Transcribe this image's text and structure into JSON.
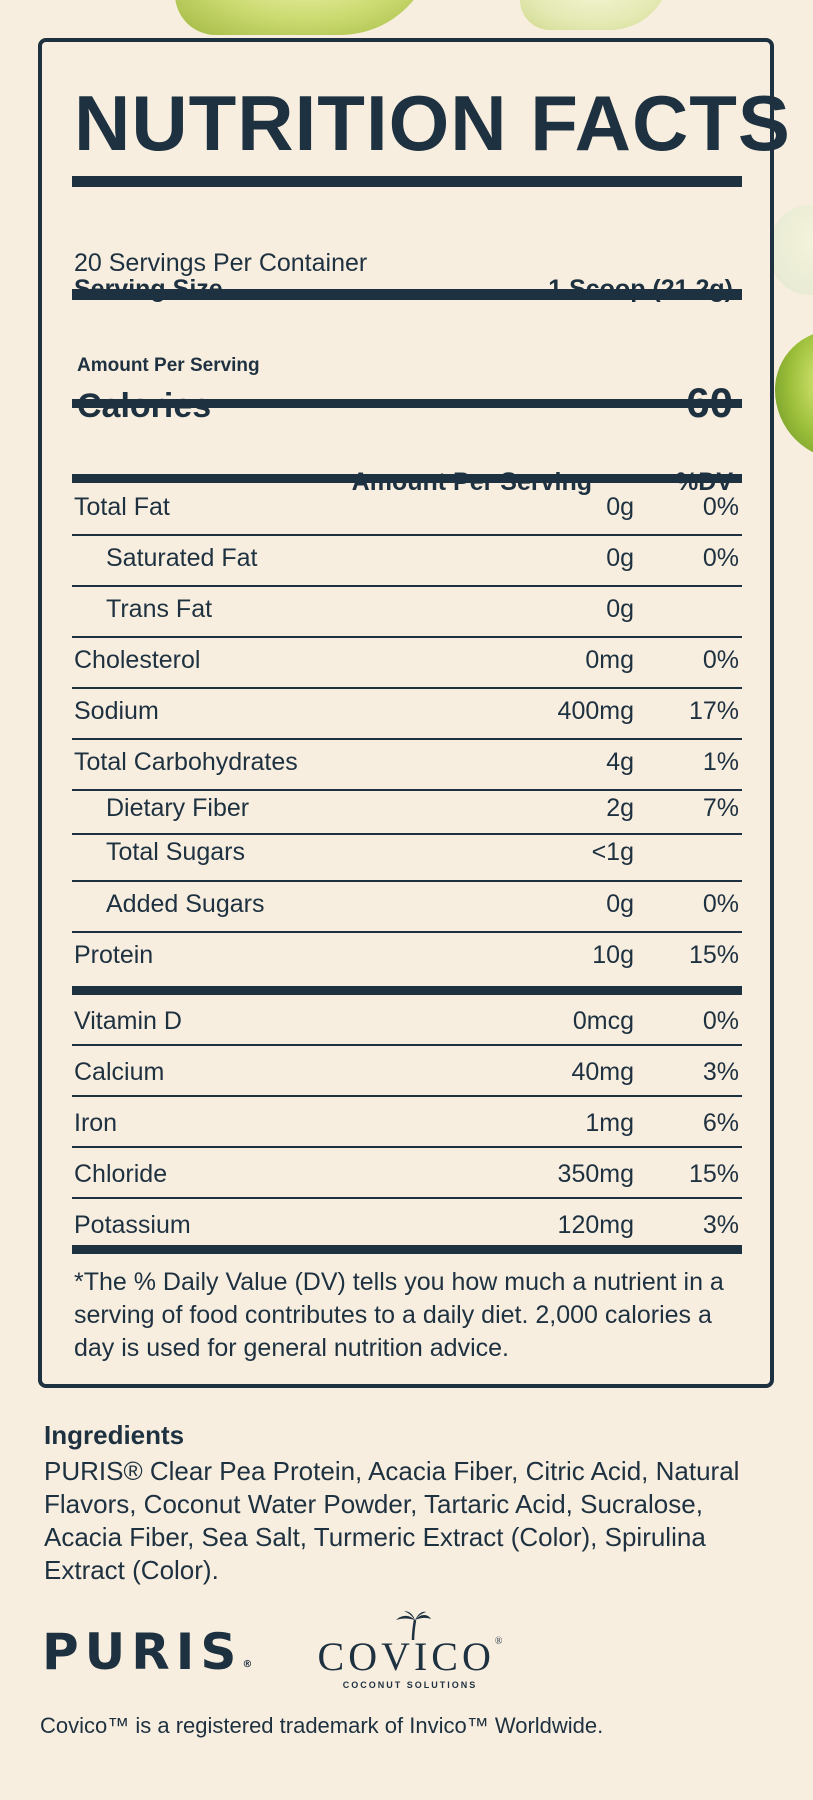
{
  "label": {
    "title": "NUTRITION FACTS",
    "servings_per_container": "20 Servings Per Container",
    "serving_size_label": "Serving Size",
    "serving_size_value": "1 Scoop (21.2g)",
    "amount_per_serving_small": "Amount Per Serving",
    "calories_label": "Calories",
    "calories_value": "60",
    "header_amount": "Amount Per Serving",
    "header_dv": "%DV",
    "rows": [
      {
        "label": "Total Fat",
        "amount": "0g",
        "dv": "0%"
      },
      {
        "label": "Saturated Fat",
        "amount": "0g",
        "dv": "0%"
      },
      {
        "label": "Trans Fat",
        "amount": "0g",
        "dv": ""
      },
      {
        "label": "Cholesterol",
        "amount": "0mg",
        "dv": "0%"
      },
      {
        "label": "Sodium",
        "amount": "400mg",
        "dv": "17%"
      },
      {
        "label": "Total Carbohydrates",
        "amount": "4g",
        "dv": "1%"
      },
      {
        "label": "Dietary Fiber",
        "amount": "2g",
        "dv": "7%"
      },
      {
        "label": "Total Sugars",
        "amount": "<1g",
        "dv": ""
      },
      {
        "label": "Added Sugars",
        "amount": "0g",
        "dv": "0%"
      },
      {
        "label": "Protein",
        "amount": "10g",
        "dv": "15%"
      },
      {
        "label": "Vitamin D",
        "amount": "0mcg",
        "dv": "0%"
      },
      {
        "label": "Calcium",
        "amount": "40mg",
        "dv": "3%"
      },
      {
        "label": "Iron",
        "amount": "1mg",
        "dv": "6%"
      },
      {
        "label": "Chloride",
        "amount": "350mg",
        "dv": "15%"
      },
      {
        "label": "Potassium",
        "amount": "120mg",
        "dv": "3%"
      }
    ],
    "footnote": "*The % Daily Value (DV) tells you how much a nutrient in a serving of food contributes to a daily diet. 2,000 calories a day is used for general nutrition advice."
  },
  "ingredients": {
    "title": "Ingredients",
    "text": "PURIS® Clear Pea Protein, Acacia Fiber, Citric Acid, Natural Flavors, Coconut Water Powder, Tartaric Acid, Sucralose, Acacia Fiber, Sea Salt, Turmeric Extract (Color), Spirulina Extract (Color)."
  },
  "logos": {
    "puris": "PURIS",
    "puris_mark": "®",
    "covico": "COVICO",
    "covico_mark": "®",
    "covico_sub": "COCONUT SOLUTIONS"
  },
  "trademark_note": "Covico™ is a registered trademark of Invico™ Worldwide.",
  "colors": {
    "ink": "#1e3140",
    "background": "#f8eedf"
  },
  "icons": [
    "lime-slice-decor",
    "palm-tree-icon"
  ]
}
